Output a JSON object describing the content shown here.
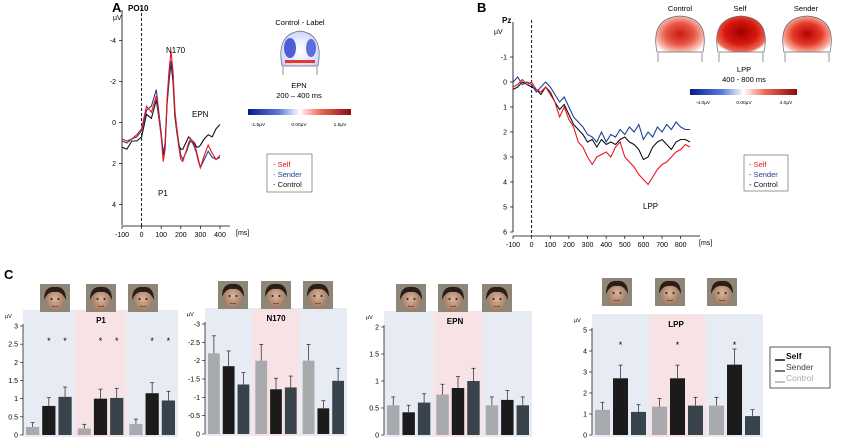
{
  "panels": {
    "A": {
      "letter": "A",
      "electrode": "PO10",
      "ylabel": "µV",
      "xunit": "[ms]",
      "yticks": [
        "-4",
        "-2",
        "0",
        "2",
        "4"
      ],
      "xticks": [
        "-100",
        "0",
        "100",
        "200",
        "300",
        "400"
      ],
      "peak_labels": {
        "n170": "N170",
        "epn": "EPN",
        "p1": "P1"
      },
      "map_title": "Control - Label",
      "map_component": "EPN",
      "map_window": "200 – 400 ms",
      "scale": {
        "min": "-1.5µV",
        "mid": "0.00µV",
        "max": "1.5µV"
      },
      "legend": [
        "- Self",
        "- Sender",
        "- Control"
      ]
    },
    "B": {
      "letter": "B",
      "electrode": "Pz",
      "ylabel": "µV",
      "xunit": "[ms]",
      "yticks": [
        "-1",
        "0",
        "1",
        "2",
        "3",
        "4",
        "5",
        "6"
      ],
      "xticks": [
        "-100",
        "0",
        "100",
        "200",
        "300",
        "400",
        "500",
        "600",
        "700",
        "800"
      ],
      "peak_label": "LPP",
      "map_titles": [
        "Control",
        "Self",
        "Sender"
      ],
      "map_component": "LPP",
      "map_window": "400 - 800 ms",
      "scale": {
        "min": "-4.0µV",
        "mid": "0.00µV",
        "max": "4.0µV"
      },
      "legend": [
        "- Self",
        "- Sender",
        "- Control"
      ]
    },
    "C": {
      "letter": "C",
      "legend": [
        "Self",
        "Sender",
        "Control"
      ]
    }
  },
  "colors": {
    "self": "#e8161b",
    "sender": "#1f3f95",
    "control": "#111111",
    "bar_self": "#1b1b1b",
    "bar_sender": "#39434c",
    "bar_control": "#a9aaae"
  },
  "chart_data": [
    {
      "type": "line",
      "title": "PO10",
      "xlabel": "[ms]",
      "ylabel": "µV",
      "xlim": [
        -100,
        400
      ],
      "ylim": [
        5,
        -5
      ],
      "x": [
        -100,
        -75,
        -50,
        -25,
        0,
        25,
        50,
        75,
        100,
        110,
        120,
        130,
        140,
        150,
        160,
        170,
        180,
        190,
        200,
        210,
        220,
        230,
        240,
        250,
        260,
        270,
        280,
        290,
        300,
        320,
        340,
        360,
        380,
        400
      ],
      "series": [
        {
          "name": "Self",
          "values": [
            0.8,
            0.9,
            0.8,
            0.6,
            0.3,
            -0.8,
            -0.5,
            -1.3,
            0.7,
            1.9,
            1.3,
            -1.2,
            -2.5,
            -3.5,
            -2.5,
            -0.6,
            0.4,
            1.2,
            1.8,
            1.9,
            1.6,
            1.3,
            1.0,
            0.8,
            0.9,
            1.1,
            1.4,
            1.8,
            2.2,
            1.6,
            1.1,
            1.5,
            1.8,
            1.6
          ]
        },
        {
          "name": "Sender",
          "values": [
            0.9,
            1.0,
            0.8,
            0.7,
            0.4,
            -0.6,
            -0.8,
            -1.6,
            0.5,
            1.5,
            1.0,
            -1.0,
            -2.2,
            -3.0,
            -2.3,
            -0.5,
            0.3,
            1.0,
            1.6,
            1.8,
            1.6,
            1.4,
            1.1,
            0.9,
            1.0,
            1.2,
            1.5,
            1.9,
            2.2,
            1.8,
            1.4,
            1.7,
            1.8,
            1.7
          ]
        },
        {
          "name": "Control",
          "values": [
            1.2,
            1.3,
            0.9,
            0.9,
            0.7,
            -0.4,
            -0.2,
            -1.1,
            0.6,
            1.6,
            1.2,
            -0.9,
            -2.0,
            -2.9,
            -2.0,
            -0.3,
            0.5,
            1.1,
            1.3,
            1.3,
            1.1,
            0.9,
            0.7,
            0.8,
            0.9,
            1.0,
            1.2,
            1.2,
            1.1,
            0.8,
            0.6,
            0.7,
            0.3,
            0.1
          ]
        }
      ]
    },
    {
      "type": "line",
      "title": "Pz",
      "xlabel": "[ms]",
      "ylabel": "µV",
      "xlim": [
        -100,
        850
      ],
      "ylim": [
        6,
        -2
      ],
      "x": [
        -100,
        -75,
        -50,
        -25,
        0,
        25,
        50,
        75,
        100,
        125,
        150,
        175,
        200,
        225,
        250,
        275,
        300,
        325,
        350,
        375,
        400,
        425,
        450,
        475,
        500,
        525,
        550,
        575,
        600,
        625,
        650,
        675,
        700,
        725,
        750,
        775,
        800,
        825,
        850
      ],
      "series": [
        {
          "name": "Self",
          "values": [
            0.2,
            0.1,
            -0.1,
            0.1,
            0.0,
            0.3,
            0.4,
            0.2,
            0.5,
            0.8,
            1.4,
            1.0,
            1.5,
            1.8,
            2.4,
            2.6,
            3.0,
            3.3,
            3.0,
            2.9,
            2.8,
            3.0,
            2.6,
            2.4,
            3.0,
            3.2,
            3.4,
            3.7,
            3.9,
            4.1,
            3.8,
            3.5,
            3.3,
            3.2,
            3.0,
            2.8,
            2.7,
            2.5,
            2.6
          ]
        },
        {
          "name": "Sender",
          "values": [
            0.0,
            -0.2,
            0.1,
            0.0,
            0.1,
            0.4,
            0.2,
            0.0,
            0.2,
            0.5,
            0.8,
            0.6,
            1.0,
            1.4,
            1.6,
            1.8,
            2.1,
            2.2,
            2.4,
            2.0,
            2.4,
            2.1,
            2.2,
            1.9,
            2.1,
            1.8,
            2.0,
            1.7,
            2.3,
            2.0,
            2.2,
            1.8,
            2.0,
            1.7,
            1.9,
            1.6,
            1.8,
            1.9,
            1.9
          ]
        },
        {
          "name": "Control",
          "values": [
            0.3,
            0.2,
            0.0,
            0.1,
            0.2,
            0.3,
            0.5,
            0.2,
            0.4,
            0.8,
            1.1,
            0.9,
            1.3,
            1.7,
            1.9,
            2.1,
            2.4,
            2.3,
            2.6,
            2.3,
            2.5,
            2.4,
            2.5,
            2.3,
            2.2,
            2.4,
            2.5,
            2.7,
            3.1,
            3.0,
            2.6,
            2.4,
            2.3,
            2.5,
            2.7,
            2.4,
            2.3,
            2.3,
            2.4
          ]
        }
      ]
    },
    {
      "type": "bar",
      "title": "P1",
      "ylabel": "µV",
      "ylim": [
        0,
        3
      ],
      "yticks": [
        "0",
        "0.5",
        "1",
        "1.5",
        "2",
        "2.5",
        "3"
      ],
      "groups": [
        {
          "values": [
            0.22,
            0.8,
            1.05
          ],
          "stars": [
            false,
            true,
            true
          ]
        },
        {
          "values": [
            0.18,
            1.0,
            1.02
          ],
          "stars": [
            false,
            true,
            true
          ]
        },
        {
          "values": [
            0.3,
            1.15,
            0.95
          ],
          "stars": [
            false,
            true,
            true
          ]
        }
      ]
    },
    {
      "type": "bar",
      "title": "N170",
      "ylabel": "µV",
      "ylim": [
        0,
        -3
      ],
      "yticks": [
        "0",
        "-0.5",
        "-1",
        "-1.5",
        "-2",
        "-2.5",
        "-3"
      ],
      "groups": [
        {
          "values": [
            -2.2,
            -1.85,
            -1.35
          ],
          "stars": [
            false,
            false,
            false
          ]
        },
        {
          "values": [
            -2.0,
            -1.22,
            -1.27
          ],
          "stars": [
            false,
            false,
            false
          ]
        },
        {
          "values": [
            -2.0,
            -0.7,
            -1.45
          ],
          "stars": [
            false,
            false,
            false
          ]
        }
      ]
    },
    {
      "type": "bar",
      "title": "EPN",
      "ylabel": "µV",
      "ylim": [
        0,
        2
      ],
      "yticks": [
        "0",
        "0.5",
        "1",
        "1.5",
        "2"
      ],
      "groups": [
        {
          "values": [
            0.55,
            0.42,
            0.6
          ],
          "stars": [
            false,
            false,
            false
          ]
        },
        {
          "values": [
            0.75,
            0.87,
            1.0
          ],
          "stars": [
            false,
            false,
            false
          ]
        },
        {
          "values": [
            0.55,
            0.65,
            0.55
          ],
          "stars": [
            false,
            false,
            false
          ]
        }
      ]
    },
    {
      "type": "bar",
      "title": "LPP",
      "ylabel": "µV",
      "ylim": [
        0,
        5
      ],
      "yticks": [
        "0",
        "1",
        "2",
        "3",
        "4",
        "5"
      ],
      "groups": [
        {
          "values": [
            1.2,
            2.7,
            1.1
          ],
          "stars": [
            false,
            true,
            false
          ]
        },
        {
          "values": [
            1.35,
            2.7,
            1.4
          ],
          "stars": [
            false,
            true,
            false
          ]
        },
        {
          "values": [
            1.4,
            3.35,
            0.9
          ],
          "stars": [
            false,
            true,
            false
          ]
        }
      ]
    }
  ]
}
